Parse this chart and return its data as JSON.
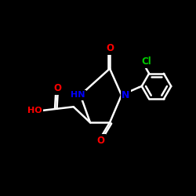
{
  "bg_color": "#000000",
  "bond_color": "#ffffff",
  "atom_colors": {
    "O": "#ff0000",
    "N": "#0000ff",
    "Cl": "#00cc00",
    "H": "#ffffff",
    "C": "#ffffff"
  },
  "figsize": [
    2.5,
    2.5
  ],
  "dpi": 100
}
